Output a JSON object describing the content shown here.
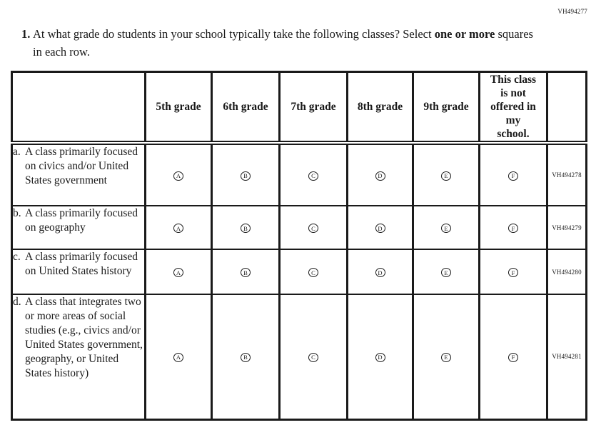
{
  "form_code": "VH494277",
  "question": {
    "number": "1.",
    "line1_regular": "At what grade do students in your school typically take the following classes? Select ",
    "line1_bold": "one",
    "line2_bold": "or more",
    "line2_regular": " squares in each row."
  },
  "table": {
    "column_headers": [
      "5th grade",
      "6th grade",
      "7th grade",
      "8th grade",
      "9th grade",
      "This class\nis not\noffered in\nmy\nschool."
    ],
    "options": [
      "A",
      "B",
      "C",
      "D",
      "E",
      "F"
    ],
    "rows": [
      {
        "letter": "a.",
        "label": "A class primarily focused on civics and/or United States government",
        "code": "VH494278"
      },
      {
        "letter": "b.",
        "label": "A class primarily focused on geography",
        "code": "VH494279"
      },
      {
        "letter": "c.",
        "label": "A class primarily focused on United States history",
        "code": "VH494280"
      },
      {
        "letter": "d.",
        "label": "A class that integrates two or more areas of social studies (e.g., civics and/or United States government, geography, or United States history)",
        "code": "VH494281"
      }
    ]
  }
}
